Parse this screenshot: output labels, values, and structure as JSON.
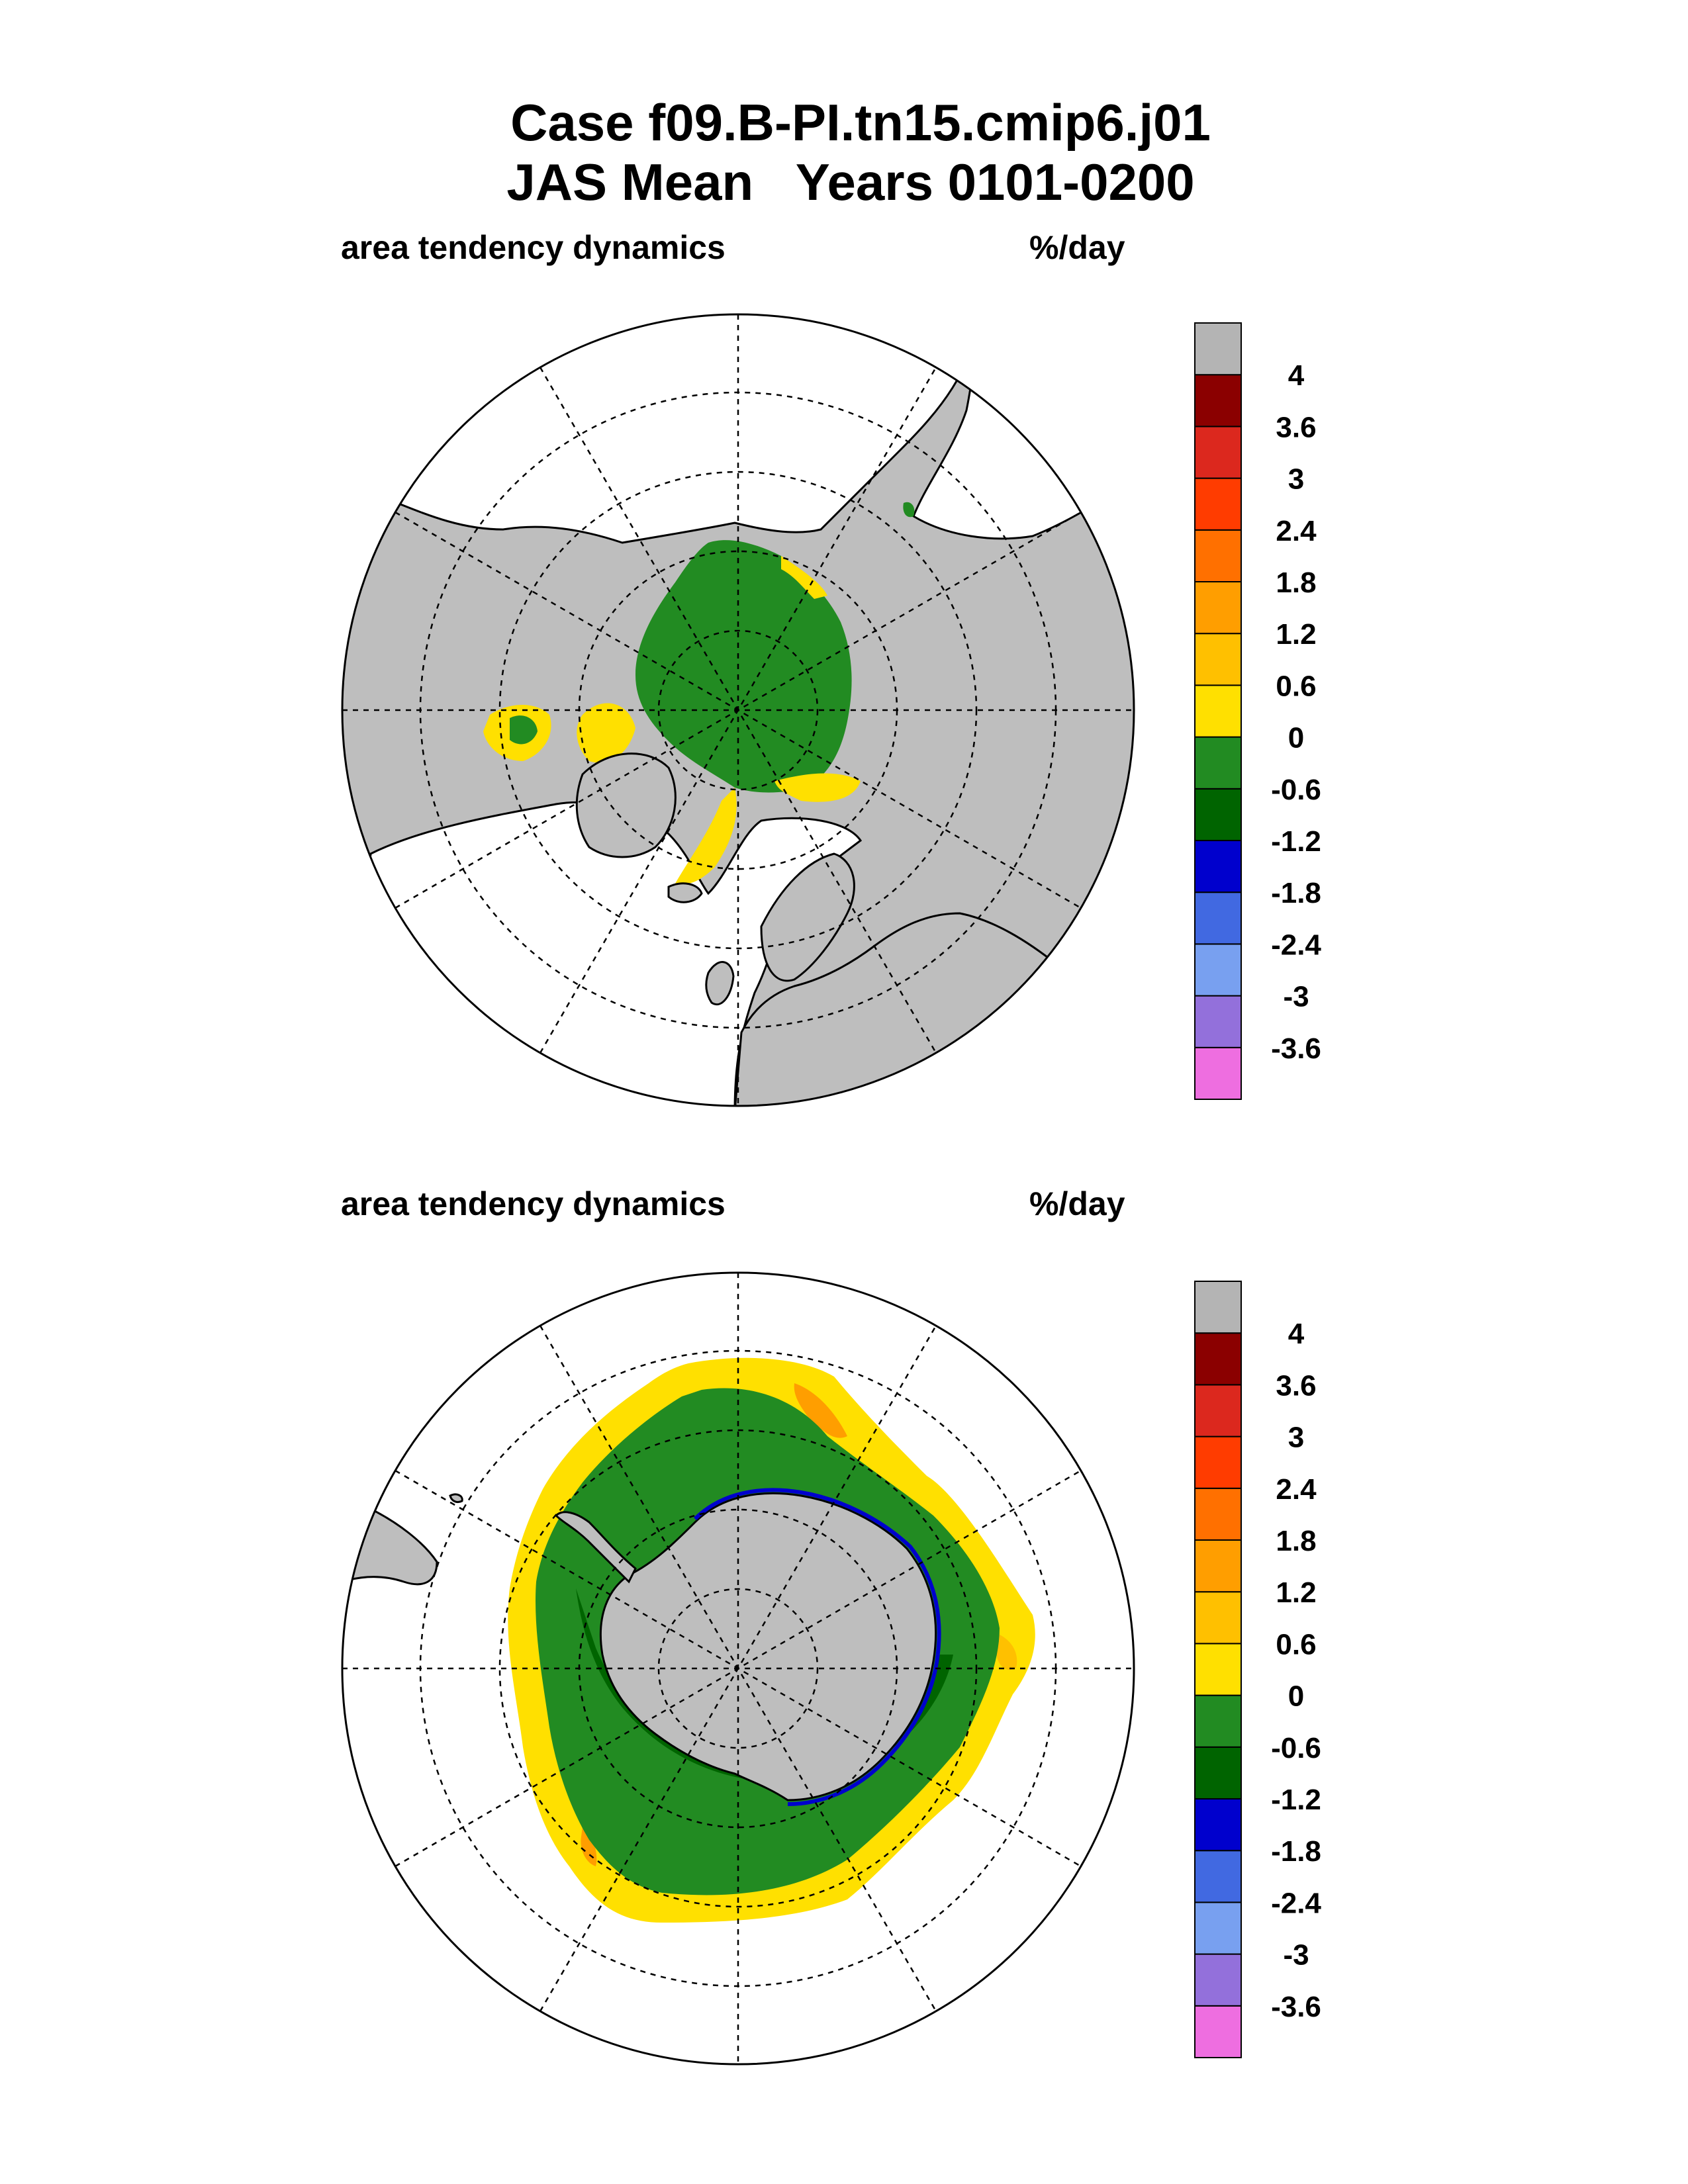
{
  "header": {
    "title": "Case f09.B-PI.tn15.cmip6.j01",
    "subtitle_season": "JAS Mean",
    "subtitle_years": "Years 0101-0200"
  },
  "colors": {
    "land": "#bebebe",
    "ocean": "#ffffff",
    "levels": [
      "#ee6ee0",
      "#9370db",
      "#78a0f0",
      "#4169e1",
      "#0000cd",
      "#006400",
      "#228b22",
      "#ffe000",
      "#ffc000",
      "#ff9e00",
      "#ff7000",
      "#ff3c00",
      "#dc281e",
      "#8b0000",
      "#b4b4b4"
    ]
  },
  "chart_data": [
    {
      "type": "heatmap",
      "projection": "polar-stereographic",
      "hemisphere": "north",
      "title": "area tendency dynamics",
      "units": "%/day",
      "colorbar_levels": [
        -3.6,
        -3,
        -2.4,
        -1.8,
        -1.2,
        -0.6,
        0,
        0.6,
        1.2,
        1.8,
        2.4,
        3,
        3.6,
        4
      ],
      "colorbar_labels": [
        "4",
        "3.6",
        "3",
        "2.4",
        "1.8",
        "1.2",
        "0.6",
        "0",
        "-0.6",
        "-1.2",
        "-1.8",
        "-2.4",
        "-3",
        "-3.6"
      ],
      "dominant_range": [
        -0.6,
        0.6
      ]
    },
    {
      "type": "heatmap",
      "projection": "polar-stereographic",
      "hemisphere": "south",
      "title": "area tendency dynamics",
      "units": "%/day",
      "colorbar_levels": [
        -3.6,
        -3,
        -2.4,
        -1.8,
        -1.2,
        -0.6,
        0,
        0.6,
        1.2,
        1.8,
        2.4,
        3,
        3.6,
        4
      ],
      "colorbar_labels": [
        "4",
        "3.6",
        "3",
        "2.4",
        "1.8",
        "1.2",
        "0.6",
        "0",
        "-0.6",
        "-1.2",
        "-1.8",
        "-2.4",
        "-3",
        "-3.6"
      ],
      "dominant_range": [
        -1.2,
        1.8
      ]
    }
  ]
}
